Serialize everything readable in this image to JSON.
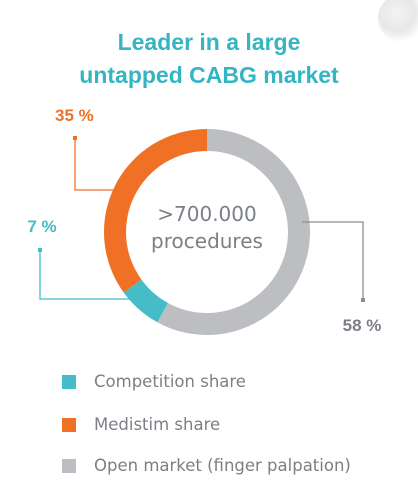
{
  "title_lines": [
    "Leader in a large",
    "untapped CABG market"
  ],
  "center_label": [
    ">700.000",
    "procedures"
  ],
  "colors": {
    "title": "#35b5c3",
    "competition": "#45bcc8",
    "medistim": "#f07126",
    "open_market": "#bcbec2",
    "label_text_grey": "#7b7f86"
  },
  "chart_data": {
    "type": "pie",
    "donut": true,
    "title": "Leader in a large untapped CABG market",
    "center_text": ">700.000 procedures",
    "unit": "%",
    "slices": [
      {
        "name": "Competition share",
        "value": 7,
        "label": "7 %",
        "color": "#45bcc8"
      },
      {
        "name": "Medistim share",
        "value": 35,
        "label": "35 %",
        "color": "#f07126"
      },
      {
        "name": "Open market (finger palpation)",
        "value": 58,
        "label": "58 %",
        "color": "#bcbec2"
      }
    ],
    "legend_position": "bottom-left"
  },
  "legend": [
    {
      "label": "Competition share",
      "color": "#45bcc8"
    },
    {
      "label": "Medistim share",
      "color": "#f07126"
    },
    {
      "label": "Open market (finger palpation)",
      "color": "#bcbec2"
    }
  ]
}
